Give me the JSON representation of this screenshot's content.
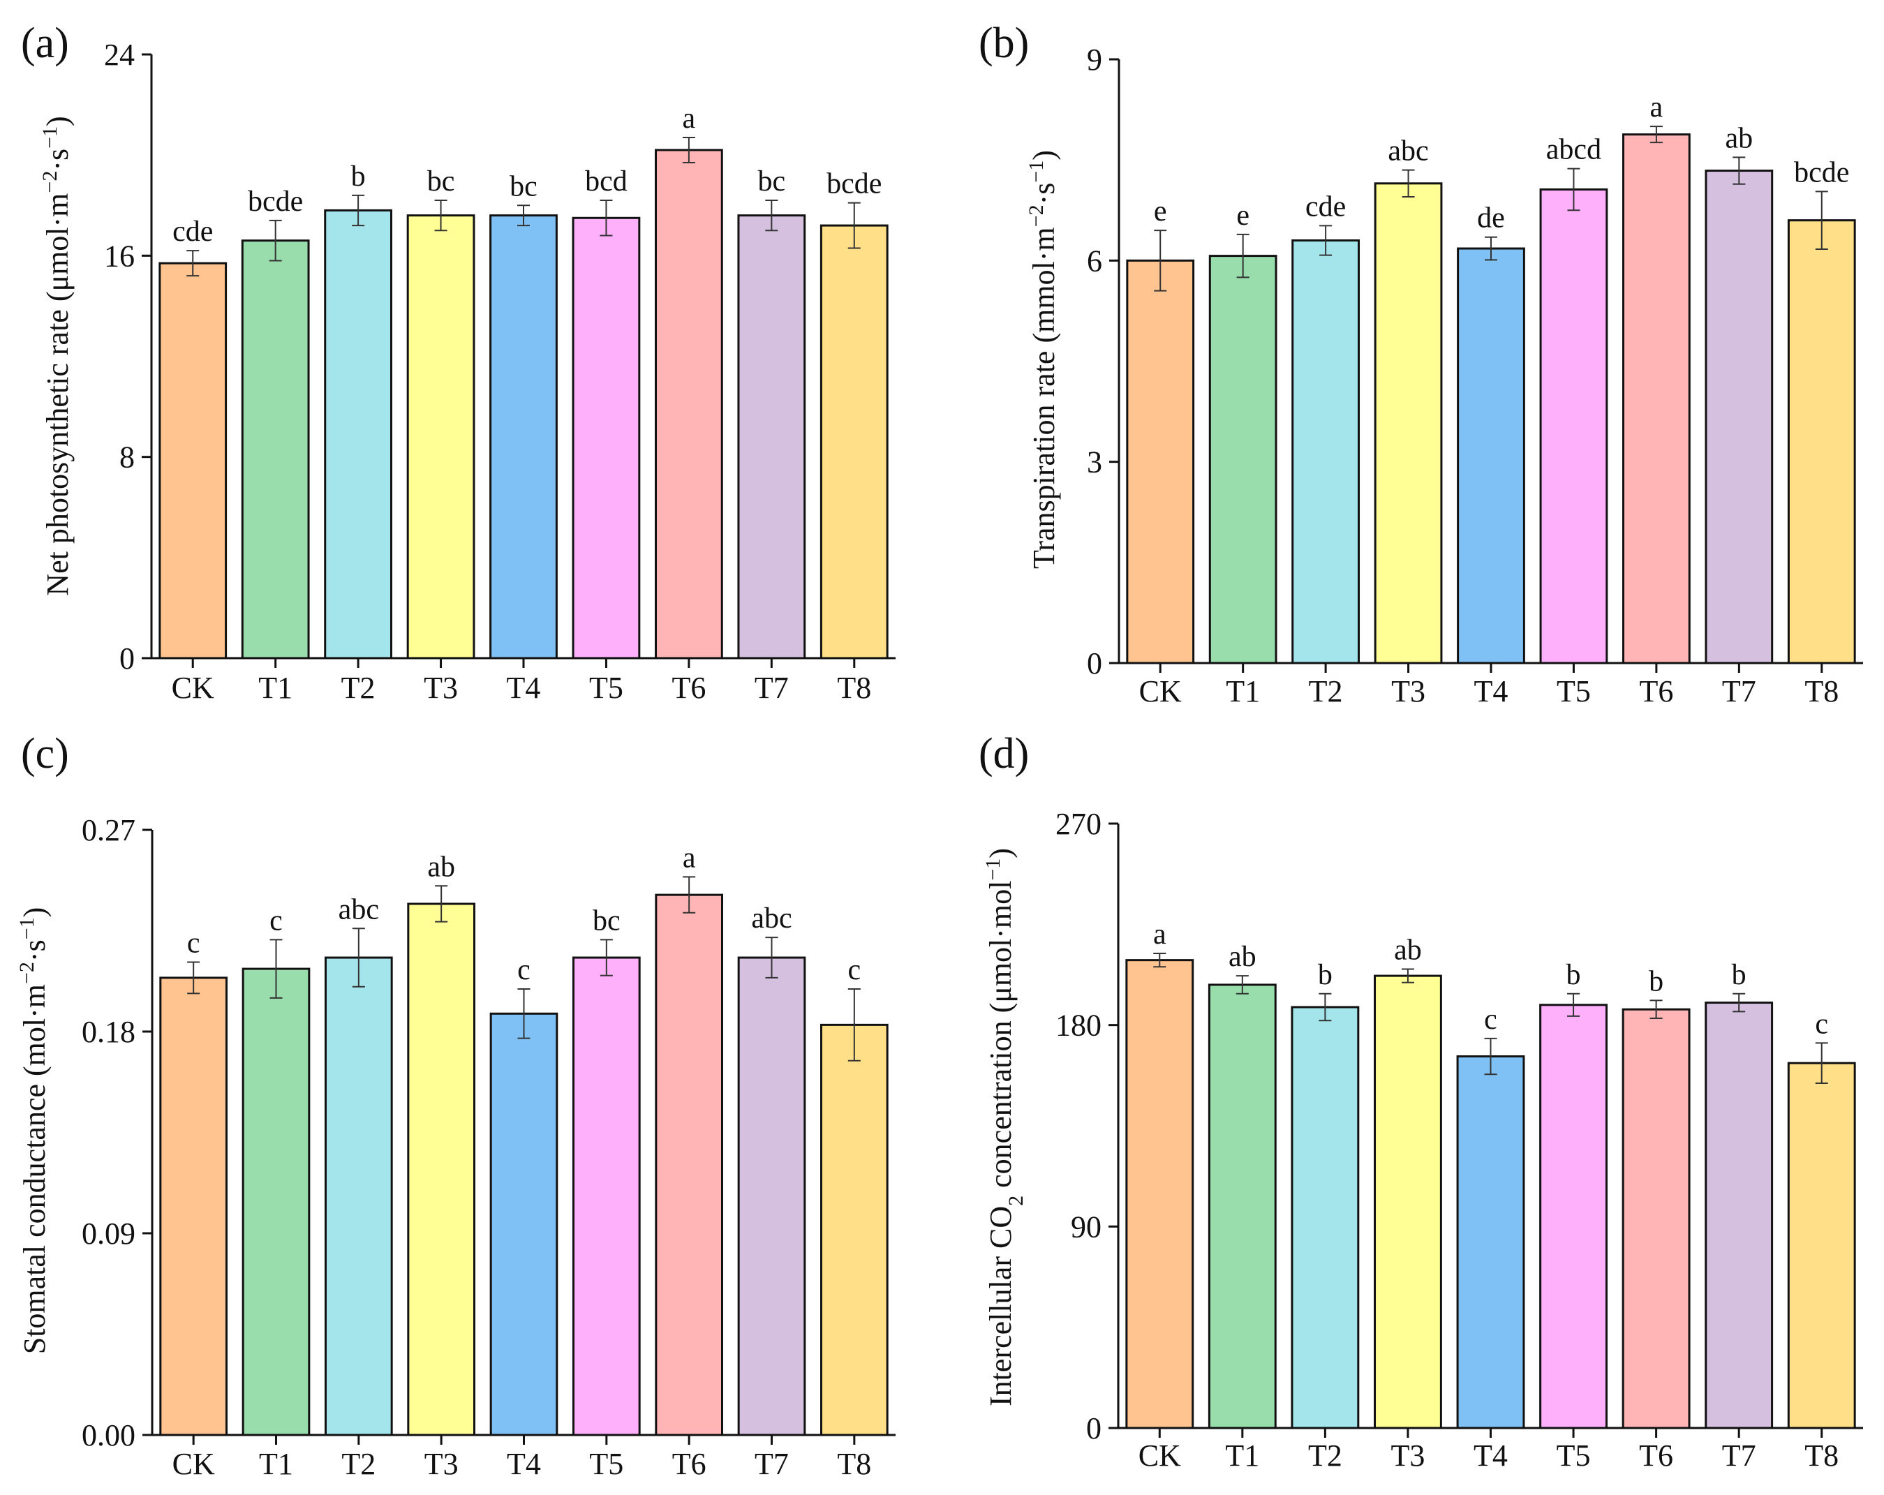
{
  "chart_data": [
    {
      "type": "bar",
      "panel_label": "(a)",
      "categories": [
        "CK",
        "T1",
        "T2",
        "T3",
        "T4",
        "T5",
        "T6",
        "T7",
        "T8"
      ],
      "values": [
        15.7,
        16.6,
        17.8,
        17.6,
        17.6,
        17.5,
        20.2,
        17.6,
        17.2
      ],
      "errors": [
        0.5,
        0.8,
        0.6,
        0.6,
        0.4,
        0.7,
        0.5,
        0.6,
        0.9
      ],
      "sig_letters": [
        "cde",
        "bcde",
        "b",
        "bc",
        "bc",
        "bcd",
        "a",
        "bc",
        "bcde"
      ],
      "ylim": [
        0,
        24
      ],
      "yticks": [
        "0",
        "8",
        "16",
        "24"
      ],
      "ylabel_main": "Net photosynthetic rate (μmol·m",
      "ylabel_sup1": "−2",
      "ylabel_mid": "·s",
      "ylabel_sup2": "−1",
      "ylabel_end": ")",
      "xlabel": ""
    },
    {
      "type": "bar",
      "panel_label": "(b)",
      "categories": [
        "CK",
        "T1",
        "T2",
        "T3",
        "T4",
        "T5",
        "T6",
        "T7",
        "T8"
      ],
      "values": [
        6.0,
        6.07,
        6.3,
        7.15,
        6.18,
        7.06,
        7.88,
        7.34,
        6.6
      ],
      "errors": [
        0.45,
        0.32,
        0.22,
        0.2,
        0.17,
        0.31,
        0.12,
        0.2,
        0.43
      ],
      "sig_letters": [
        "e",
        "e",
        "cde",
        "abc",
        "de",
        "abcd",
        "a",
        "ab",
        "bcde"
      ],
      "ylim": [
        0,
        9
      ],
      "yticks": [
        "0",
        "3",
        "6",
        "9"
      ],
      "ylabel_main": "Transpiration rate (mmol·m",
      "ylabel_sup1": "−2",
      "ylabel_mid": "·s",
      "ylabel_sup2": "−1",
      "ylabel_end": ")",
      "xlabel": ""
    },
    {
      "type": "bar",
      "panel_label": "(c)",
      "categories": [
        "CK",
        "T1",
        "T2",
        "T3",
        "T4",
        "T5",
        "T6",
        "T7",
        "T8"
      ],
      "values": [
        0.204,
        0.208,
        0.213,
        0.237,
        0.188,
        0.213,
        0.241,
        0.213,
        0.183
      ],
      "errors": [
        0.007,
        0.013,
        0.013,
        0.008,
        0.011,
        0.008,
        0.008,
        0.009,
        0.016
      ],
      "sig_letters": [
        "c",
        "c",
        "abc",
        "ab",
        "c",
        "bc",
        "a",
        "abc",
        "c"
      ],
      "ylim": [
        0,
        0.27
      ],
      "yticks": [
        "0.00",
        "0.09",
        "0.18",
        "0.27"
      ],
      "ylabel_main": "Stomatal conductance (mol·m",
      "ylabel_sup1": "−2",
      "ylabel_mid": "·s",
      "ylabel_sup2": "−1",
      "ylabel_end": ")",
      "xlabel": ""
    },
    {
      "type": "bar",
      "panel_label": "(d)",
      "categories": [
        "CK",
        "T1",
        "T2",
        "T3",
        "T4",
        "T5",
        "T6",
        "T7",
        "T8"
      ],
      "values": [
        209,
        198,
        188,
        202,
        166,
        189,
        187,
        190,
        163
      ],
      "errors": [
        3,
        4,
        6,
        3,
        8,
        5,
        4,
        4,
        9
      ],
      "sig_letters": [
        "a",
        "ab",
        "b",
        "ab",
        "c",
        "b",
        "b",
        "b",
        "c"
      ],
      "ylim": [
        0,
        270
      ],
      "yticks": [
        "0",
        "90",
        "180",
        "270"
      ],
      "ylabel_main": "Intercellular CO",
      "ylabel_sub": "2",
      "ylabel_rest": " concentration (μmol·mol",
      "ylabel_sup1": "−1",
      "ylabel_end": ")",
      "xlabel": ""
    }
  ],
  "colors": {
    "bars": [
      "#FFC48F",
      "#99DDAD",
      "#A4E5EC",
      "#FFFF96",
      "#7FC1F4",
      "#FFB0FA",
      "#FFB5B5",
      "#D5C0E0",
      "#FFDF88"
    ],
    "axis": "#111111"
  }
}
